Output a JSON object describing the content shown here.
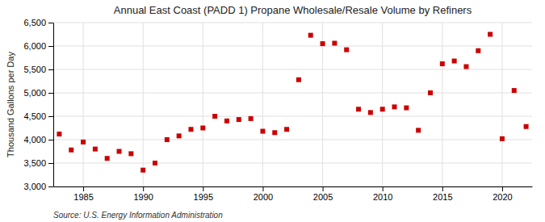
{
  "chart_data": {
    "type": "scatter",
    "title": "Annual East Coast (PADD 1) Propane Wholesale/Resale Volume by Refiners",
    "ylabel": "Thousand Gallons per Day",
    "source": "Source: U.S. Energy Information Administration",
    "color": "#cc0000",
    "marker": "square",
    "x": [
      1983,
      1984,
      1985,
      1986,
      1987,
      1988,
      1989,
      1990,
      1991,
      1992,
      1993,
      1994,
      1995,
      1996,
      1997,
      1998,
      1999,
      2000,
      2001,
      2002,
      2003,
      2004,
      2005,
      2006,
      2007,
      2008,
      2009,
      2010,
      2011,
      2012,
      2013,
      2014,
      2015,
      2016,
      2017,
      2018,
      2019,
      2020,
      2021,
      2022
    ],
    "values": [
      4120,
      3780,
      3950,
      3800,
      3600,
      3750,
      3700,
      3350,
      3500,
      4000,
      4080,
      4220,
      4250,
      4500,
      4400,
      4430,
      4450,
      4180,
      4150,
      4220,
      5280,
      6230,
      6050,
      6060,
      5920,
      4650,
      4580,
      4650,
      4700,
      4680,
      4200,
      5000,
      5620,
      5680,
      5560,
      5900,
      6250,
      4020,
      5050,
      4280
    ],
    "xlim": [
      1982.5,
      2022.5
    ],
    "xticks": [
      1985,
      1990,
      1995,
      2000,
      2005,
      2010,
      2015,
      2020
    ],
    "ylim": [
      3000,
      6500
    ],
    "yticks": [
      {
        "value": 3000,
        "label": "3,000"
      },
      {
        "value": 3500,
        "label": "3,500"
      },
      {
        "value": 4000,
        "label": "4,000"
      },
      {
        "value": 4500,
        "label": "4,500"
      },
      {
        "value": 5000,
        "label": "5,000"
      },
      {
        "value": 5500,
        "label": "5,500"
      },
      {
        "value": 6000,
        "label": "6,000"
      },
      {
        "value": 6500,
        "label": "6,500"
      }
    ],
    "grid": true
  }
}
